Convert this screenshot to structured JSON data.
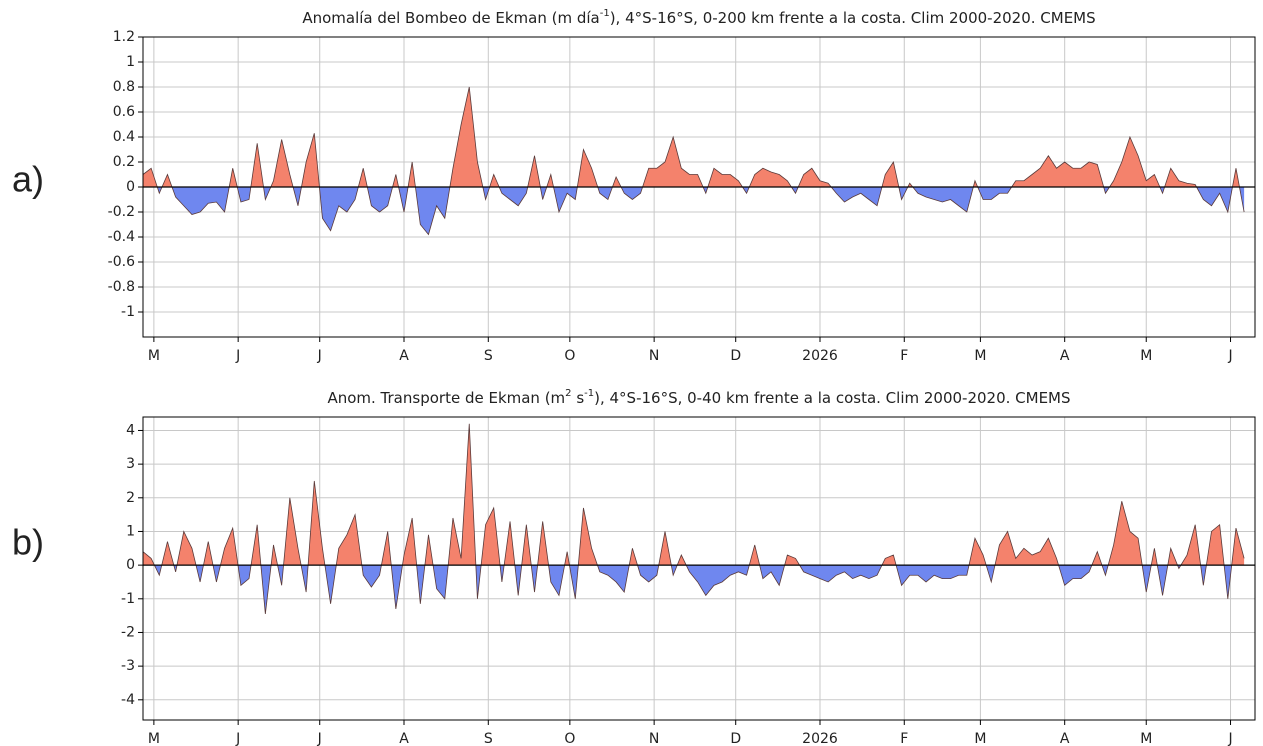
{
  "chart_data": [
    {
      "type": "area",
      "panel_label": "a)",
      "title": [
        {
          "text": "Anomalía del Bombeo de Ekman (m día"
        },
        {
          "text": "-1",
          "sup": true
        },
        {
          "text": "), 4°S-16°S, 0-200 km frente a la costa. Clim 2000-2020. CMEMS"
        }
      ],
      "xlim": [
        -4,
        405
      ],
      "xticks": [
        {
          "value": 0,
          "label": "M"
        },
        {
          "value": 31,
          "label": "J"
        },
        {
          "value": 61,
          "label": "J"
        },
        {
          "value": 92,
          "label": "A"
        },
        {
          "value": 123,
          "label": "S"
        },
        {
          "value": 153,
          "label": "O"
        },
        {
          "value": 184,
          "label": "N"
        },
        {
          "value": 214,
          "label": "D"
        },
        {
          "value": 245,
          "label": "2026"
        },
        {
          "value": 276,
          "label": "F"
        },
        {
          "value": 304,
          "label": "M"
        },
        {
          "value": 335,
          "label": "A"
        },
        {
          "value": 365,
          "label": "M"
        },
        {
          "value": 396,
          "label": "J"
        }
      ],
      "ylim": [
        -1.2,
        1.2
      ],
      "yticks": [
        1.2,
        1,
        0.8,
        0.6,
        0.4,
        0.2,
        0,
        -0.2,
        -0.4,
        -0.6,
        -0.8,
        -1
      ],
      "grid": true,
      "positive_color": "#f4826c",
      "negative_color": "#6f87ef",
      "x": [
        -4,
        -1,
        2,
        5,
        8,
        11,
        14,
        17,
        20,
        23,
        26,
        29,
        32,
        35,
        38,
        41,
        44,
        47,
        50,
        53,
        56,
        59,
        62,
        65,
        68,
        71,
        74,
        77,
        80,
        83,
        86,
        89,
        92,
        95,
        98,
        101,
        104,
        107,
        110,
        113,
        116,
        119,
        122,
        125,
        128,
        131,
        134,
        137,
        140,
        143,
        146,
        149,
        152,
        155,
        158,
        161,
        164,
        167,
        170,
        173,
        176,
        179,
        182,
        185,
        188,
        191,
        194,
        197,
        200,
        203,
        206,
        209,
        212,
        215,
        218,
        221,
        224,
        227,
        230,
        233,
        236,
        239,
        242,
        245,
        248,
        251,
        254,
        257,
        260,
        263,
        266,
        269,
        272,
        275,
        278,
        281,
        284,
        287,
        290,
        293,
        296,
        299,
        302,
        305,
        308,
        311,
        314,
        317,
        320,
        323,
        326,
        329,
        332,
        335,
        338,
        341,
        344,
        347,
        350,
        353,
        356,
        359,
        362,
        365,
        368,
        371,
        374,
        377,
        380,
        383,
        386,
        389,
        392,
        395,
        398,
        401
      ],
      "values": [
        0.1,
        0.15,
        -0.05,
        0.1,
        -0.08,
        -0.15,
        -0.22,
        -0.2,
        -0.13,
        -0.12,
        -0.2,
        0.15,
        -0.12,
        -0.1,
        0.35,
        -0.1,
        0.05,
        0.38,
        0.1,
        -0.15,
        0.2,
        0.43,
        -0.25,
        -0.35,
        -0.15,
        -0.2,
        -0.1,
        0.15,
        -0.15,
        -0.2,
        -0.15,
        0.1,
        -0.2,
        0.2,
        -0.3,
        -0.38,
        -0.15,
        -0.25,
        0.15,
        0.5,
        0.8,
        0.2,
        -0.1,
        0.1,
        -0.05,
        -0.1,
        -0.15,
        -0.05,
        0.25,
        -0.1,
        0.1,
        -0.2,
        -0.05,
        -0.1,
        0.3,
        0.15,
        -0.05,
        -0.1,
        0.08,
        -0.05,
        -0.1,
        -0.05,
        0.15,
        0.15,
        0.2,
        0.4,
        0.15,
        0.1,
        0.1,
        -0.05,
        0.15,
        0.1,
        0.1,
        0.05,
        -0.05,
        0.1,
        0.15,
        0.12,
        0.1,
        0.05,
        -0.05,
        0.1,
        0.15,
        0.05,
        0.03,
        -0.05,
        -0.12,
        -0.08,
        -0.05,
        -0.1,
        -0.15,
        0.1,
        0.2,
        -0.1,
        0.03,
        -0.05,
        -0.08,
        -0.1,
        -0.12,
        -0.1,
        -0.15,
        -0.2,
        0.05,
        -0.1,
        -0.1,
        -0.05,
        -0.05,
        0.05,
        0.05,
        0.1,
        0.15,
        0.25,
        0.15,
        0.2,
        0.15,
        0.15,
        0.2,
        0.18,
        -0.05,
        0.05,
        0.2,
        0.4,
        0.25,
        0.05,
        0.1,
        -0.05,
        0.15,
        0.05,
        0.03,
        0.02,
        -0.1,
        -0.15,
        -0.05,
        -0.2,
        0.15,
        -0.2
      ]
    },
    {
      "type": "area",
      "panel_label": "b)",
      "title": [
        {
          "text": "Anom. Transporte de Ekman (m"
        },
        {
          "text": "2",
          "sup": true
        },
        {
          "text": " s"
        },
        {
          "text": "-1",
          "sup": true
        },
        {
          "text": "), 4°S-16°S, 0-40 km frente a la costa. Clim 2000-2020. CMEMS"
        }
      ],
      "xlim": [
        -4,
        405
      ],
      "xticks": [
        {
          "value": 0,
          "label": "M"
        },
        {
          "value": 31,
          "label": "J"
        },
        {
          "value": 61,
          "label": "J"
        },
        {
          "value": 92,
          "label": "A"
        },
        {
          "value": 123,
          "label": "S"
        },
        {
          "value": 153,
          "label": "O"
        },
        {
          "value": 184,
          "label": "N"
        },
        {
          "value": 214,
          "label": "D"
        },
        {
          "value": 245,
          "label": "2026"
        },
        {
          "value": 276,
          "label": "F"
        },
        {
          "value": 304,
          "label": "M"
        },
        {
          "value": 335,
          "label": "A"
        },
        {
          "value": 365,
          "label": "M"
        },
        {
          "value": 396,
          "label": "J"
        }
      ],
      "ylim": [
        -4.6,
        4.4
      ],
      "yticks": [
        4,
        3,
        2,
        1,
        0,
        -1,
        -2,
        -3,
        -4
      ],
      "grid": true,
      "positive_color": "#f4826c",
      "negative_color": "#6f87ef",
      "x": [
        -4,
        -1,
        2,
        5,
        8,
        11,
        14,
        17,
        20,
        23,
        26,
        29,
        32,
        35,
        38,
        41,
        44,
        47,
        50,
        53,
        56,
        59,
        62,
        65,
        68,
        71,
        74,
        77,
        80,
        83,
        86,
        89,
        92,
        95,
        98,
        101,
        104,
        107,
        110,
        113,
        116,
        119,
        122,
        125,
        128,
        131,
        134,
        137,
        140,
        143,
        146,
        149,
        152,
        155,
        158,
        161,
        164,
        167,
        170,
        173,
        176,
        179,
        182,
        185,
        188,
        191,
        194,
        197,
        200,
        203,
        206,
        209,
        212,
        215,
        218,
        221,
        224,
        227,
        230,
        233,
        236,
        239,
        242,
        245,
        248,
        251,
        254,
        257,
        260,
        263,
        266,
        269,
        272,
        275,
        278,
        281,
        284,
        287,
        290,
        293,
        296,
        299,
        302,
        305,
        308,
        311,
        314,
        317,
        320,
        323,
        326,
        329,
        332,
        335,
        338,
        341,
        344,
        347,
        350,
        353,
        356,
        359,
        362,
        365,
        368,
        371,
        374,
        377,
        380,
        383,
        386,
        389,
        392,
        395,
        398,
        401
      ],
      "values": [
        0.4,
        0.2,
        -0.3,
        0.7,
        -0.2,
        1.0,
        0.5,
        -0.5,
        0.7,
        -0.5,
        0.5,
        1.1,
        -0.6,
        -0.4,
        1.2,
        -1.45,
        0.6,
        -0.6,
        2.0,
        0.5,
        -0.8,
        2.5,
        0.5,
        -1.15,
        0.5,
        0.9,
        1.5,
        -0.3,
        -0.65,
        -0.3,
        1.0,
        -1.3,
        0.3,
        1.4,
        -1.15,
        0.9,
        -0.7,
        -1.0,
        1.4,
        0.2,
        4.2,
        -1.0,
        1.2,
        1.7,
        -0.5,
        1.3,
        -0.9,
        1.2,
        -0.8,
        1.3,
        -0.5,
        -0.9,
        0.4,
        -1.0,
        1.7,
        0.5,
        -0.2,
        -0.3,
        -0.5,
        -0.8,
        0.5,
        -0.3,
        -0.5,
        -0.3,
        1.0,
        -0.3,
        0.3,
        -0.2,
        -0.5,
        -0.9,
        -0.6,
        -0.5,
        -0.3,
        -0.2,
        -0.3,
        0.6,
        -0.4,
        -0.2,
        -0.6,
        0.3,
        0.2,
        -0.2,
        -0.3,
        -0.4,
        -0.5,
        -0.3,
        -0.2,
        -0.4,
        -0.3,
        -0.4,
        -0.3,
        0.2,
        0.3,
        -0.6,
        -0.3,
        -0.3,
        -0.5,
        -0.3,
        -0.4,
        -0.4,
        -0.3,
        -0.3,
        0.8,
        0.3,
        -0.5,
        0.6,
        1.0,
        0.2,
        0.5,
        0.3,
        0.4,
        0.8,
        0.2,
        -0.6,
        -0.4,
        -0.4,
        -0.2,
        0.4,
        -0.3,
        0.6,
        1.9,
        1.0,
        0.8,
        -0.8,
        0.5,
        -0.9,
        0.5,
        -0.1,
        0.3,
        1.2,
        -0.6,
        1.0,
        1.2,
        -1.0,
        1.1,
        0.2
      ]
    }
  ]
}
